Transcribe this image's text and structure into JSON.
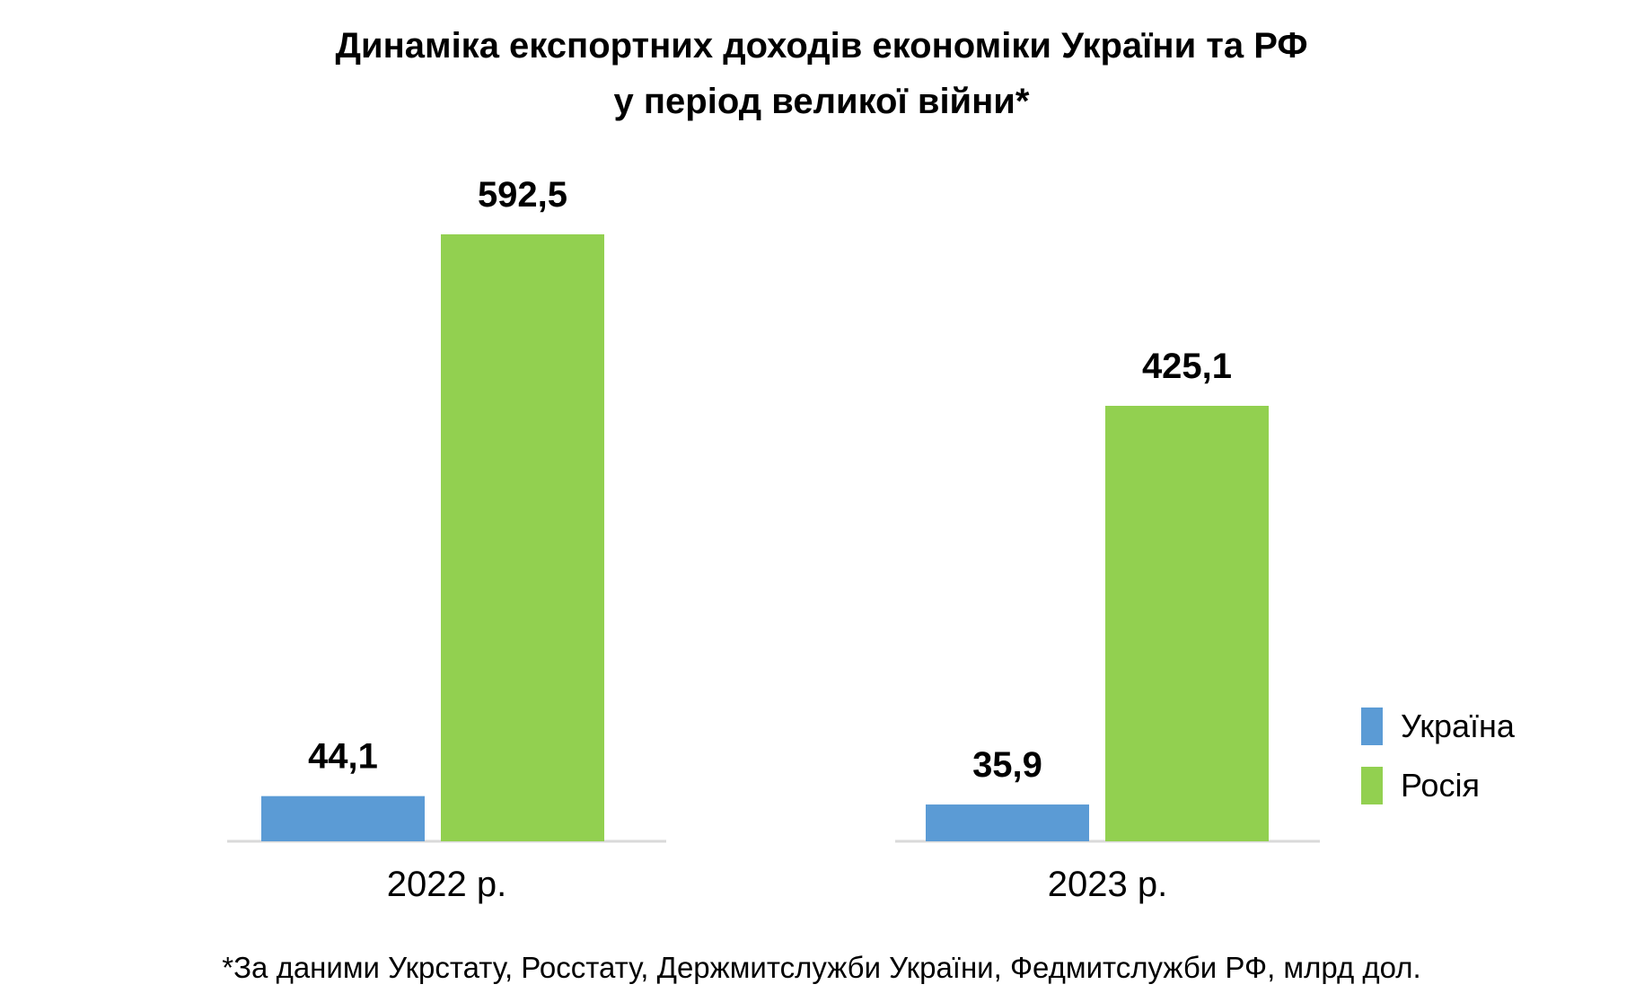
{
  "chart_data": {
    "type": "bar",
    "title_lines": [
      "Динаміка експортних доходів економіки України та РФ",
      "у період великої війни*"
    ],
    "categories": [
      "2022 р.",
      "2023 р."
    ],
    "series": [
      {
        "name": "Україна",
        "values": [
          44.1,
          35.9
        ],
        "labels": [
          "44,1",
          "35,9"
        ],
        "color": "#5b9bd5"
      },
      {
        "name": "Росія",
        "values": [
          592.5,
          425.1
        ],
        "labels": [
          "592,5",
          "425,1"
        ],
        "color": "#92d050"
      }
    ],
    "ylim": [
      0,
      600
    ],
    "grid": false,
    "legend_position": "right",
    "axis_color": "#d9d9d9",
    "footnote": "*За даними Укрстату, Росстату, Держмитслужби України, Федмитслужби РФ, млрд дол."
  }
}
